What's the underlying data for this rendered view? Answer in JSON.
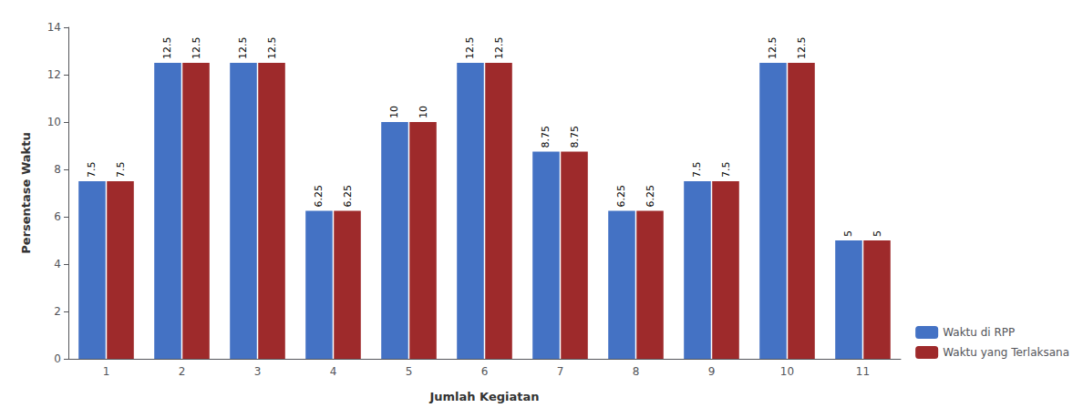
{
  "chart_data": {
    "type": "bar",
    "xlabel": "Jumlah Kegiatan",
    "ylabel": "Persentase Waktu",
    "categories": [
      "1",
      "2",
      "3",
      "4",
      "5",
      "6",
      "7",
      "8",
      "9",
      "10",
      "11"
    ],
    "series": [
      {
        "name": "Waktu di RPP",
        "color": "#4472C4",
        "values": [
          7.5,
          12.5,
          12.5,
          6.25,
          10.0,
          12.5,
          8.75,
          6.25,
          7.5,
          12.5,
          5.0
        ]
      },
      {
        "name": "Waktu yang Terlaksana",
        "color": "#9E2A2B",
        "values": [
          7.5,
          12.5,
          12.5,
          6.25,
          10.0,
          12.5,
          8.75,
          6.25,
          7.5,
          12.5,
          5.0
        ]
      }
    ],
    "ylim": [
      0,
      14
    ],
    "yticks": [
      0,
      2,
      4,
      6,
      8,
      10,
      12,
      14
    ],
    "grid": false,
    "legend": "lower right",
    "data_labels": true
  }
}
